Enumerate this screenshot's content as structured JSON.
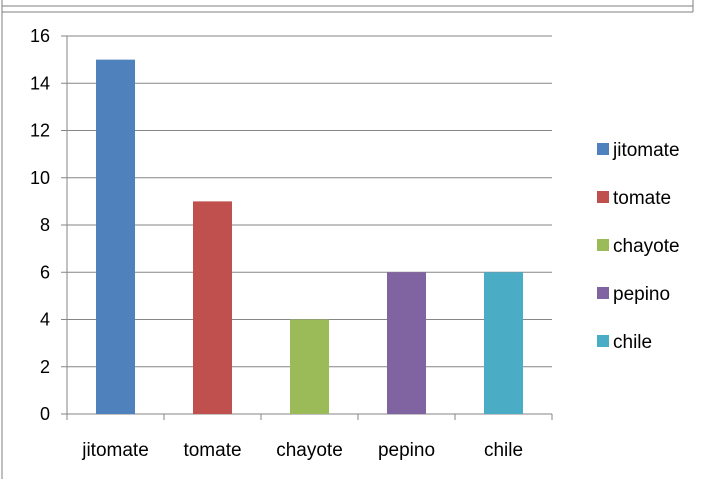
{
  "chart_data": {
    "type": "bar",
    "title": "",
    "xlabel": "",
    "ylabel": "",
    "categories": [
      "jitomate",
      "tomate",
      "chayote",
      "pepino",
      "chile"
    ],
    "values": [
      15,
      9,
      4,
      6,
      6
    ],
    "colors": [
      "#4F81BD",
      "#C0504D",
      "#9BBB59",
      "#8064A2",
      "#4BACC6"
    ],
    "ylim": [
      0,
      16
    ],
    "yticks": [
      0,
      2,
      4,
      6,
      8,
      10,
      12,
      14,
      16
    ],
    "grid": true,
    "legend_position": "right",
    "legend": [
      "jitomate",
      "tomate",
      "chayote",
      "pepino",
      "chile"
    ]
  }
}
